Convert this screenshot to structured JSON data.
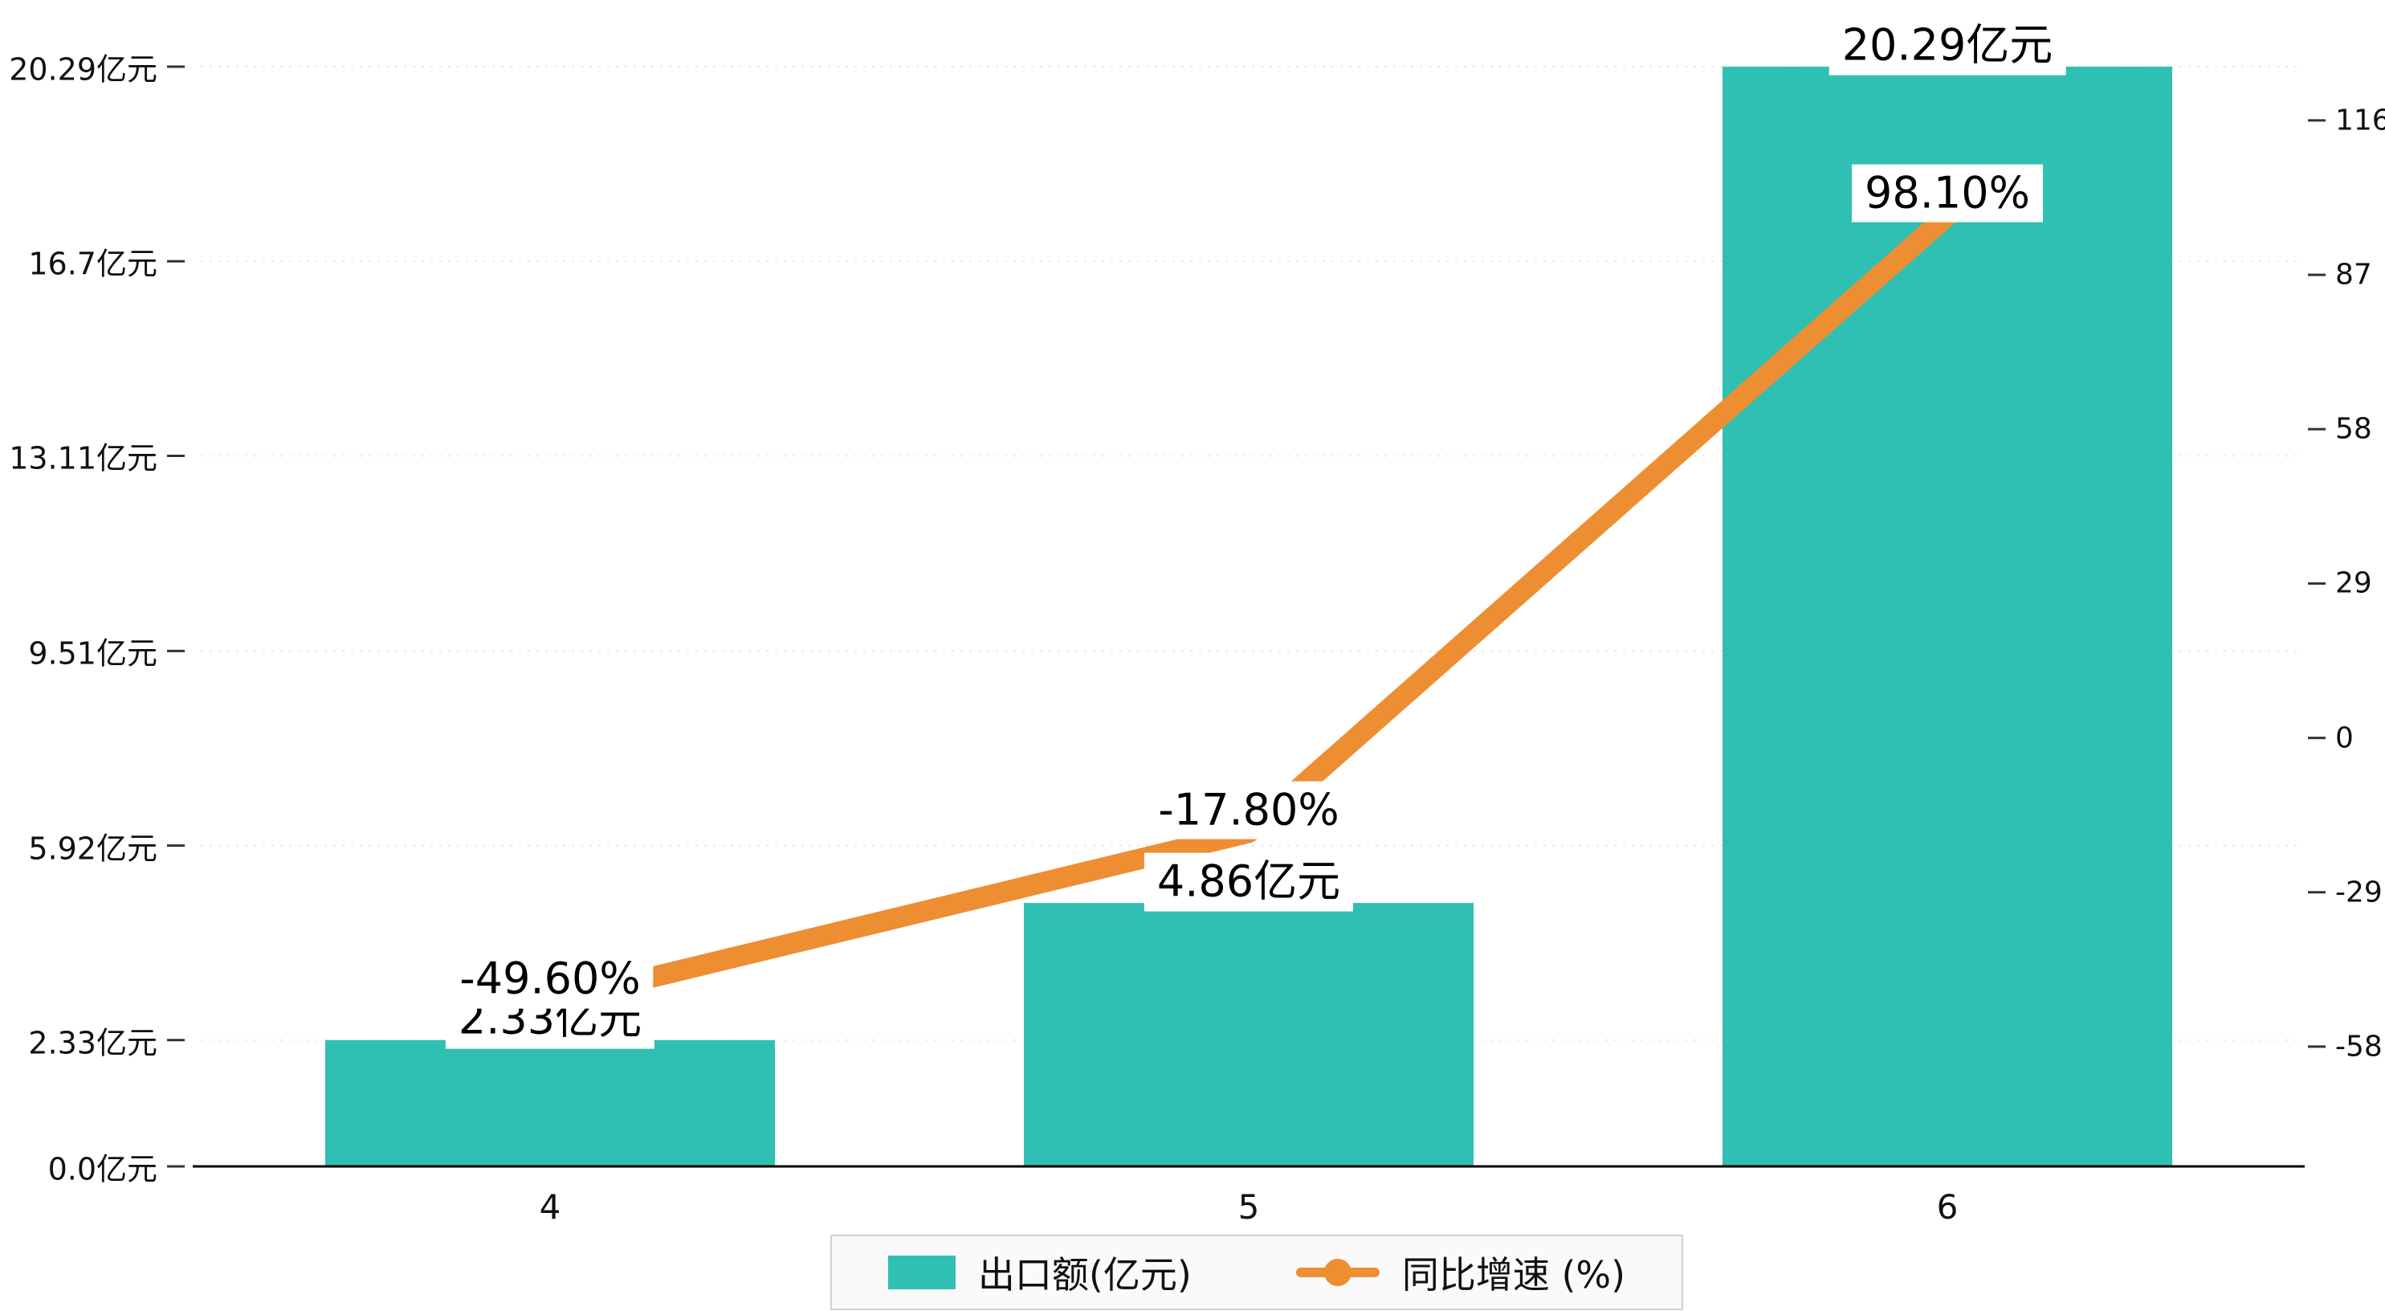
{
  "chart_data": {
    "type": "bar",
    "combo": "bar+line-dual-axis",
    "title": "",
    "xlabel": "",
    "ylabel": "",
    "categories": [
      "4",
      "5",
      "6"
    ],
    "series": [
      {
        "name": "出口额(亿元)",
        "type": "bar",
        "axis": "left",
        "color": "#2fbfb3",
        "values": [
          2.33,
          4.86,
          20.29
        ],
        "point_labels": [
          "2.33亿元",
          "4.86亿元",
          "20.29亿元"
        ]
      },
      {
        "name": "同比增速 (%)",
        "type": "line",
        "axis": "right",
        "color": "#ee8e33",
        "values": [
          -49.6,
          -17.8,
          98.1
        ],
        "point_labels": [
          "-49.60%",
          "-17.80%",
          "98.10%"
        ]
      }
    ],
    "left_axis": {
      "unit": "亿元",
      "min": 0,
      "max": 20.29,
      "ticks": [
        0,
        2.33,
        5.92,
        9.51,
        13.11,
        16.7,
        20.29
      ],
      "tick_labels": [
        "0.0亿元",
        "2.33亿元",
        "5.92亿元",
        "9.51亿元",
        "13.11亿元",
        "16.7亿元",
        "20.29亿元"
      ]
    },
    "right_axis": {
      "unit": "%",
      "min": -80.5,
      "max": 126.1,
      "ticks": [
        116,
        87,
        58,
        29,
        0,
        -29,
        -58
      ],
      "tick_labels": [
        "116",
        "87",
        "58",
        "29",
        "0",
        "-29",
        "-58"
      ]
    },
    "grid": true,
    "legend_position": "bottom"
  },
  "legend": {
    "items": [
      {
        "label": "出口额(亿元)",
        "marker": "bar-swatch",
        "color": "#2fbfb3"
      },
      {
        "label": "同比增速 (%)",
        "marker": "line-marker",
        "color": "#ee8e33"
      }
    ]
  }
}
